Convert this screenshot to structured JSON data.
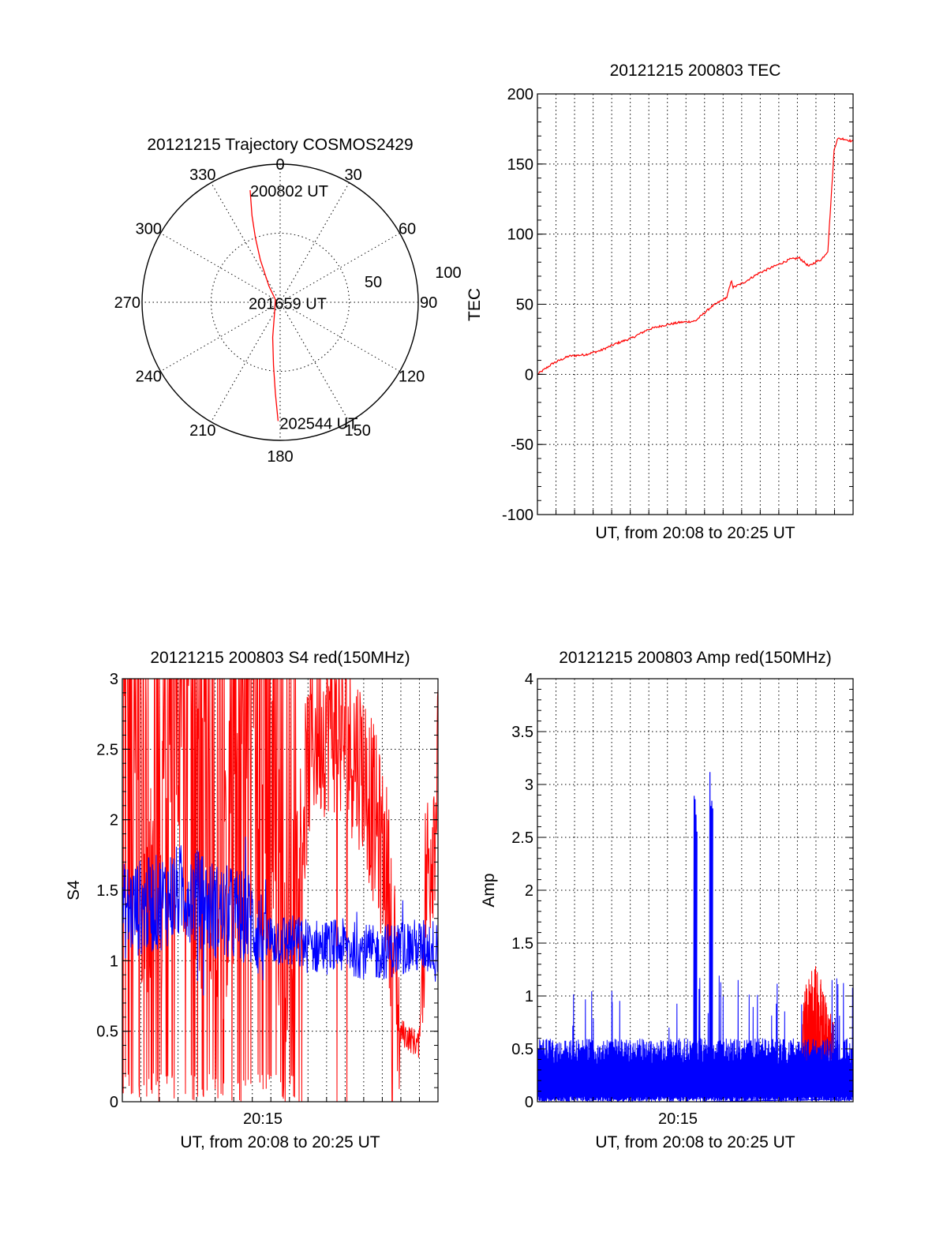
{
  "colors": {
    "red_series": "#ff0000",
    "blue_series": "#0000ff",
    "axes": "#000000"
  },
  "chart_data": [
    {
      "type": "polar",
      "title": "20121215 Trajectory COSMOS2429",
      "angle_labels": [
        "0",
        "30",
        "60",
        "90",
        "120",
        "150",
        "180",
        "210",
        "240",
        "270",
        "300",
        "330"
      ],
      "radial_labels": [
        "50",
        "100"
      ],
      "radial_max": 100,
      "grid": true,
      "series": [
        {
          "points": [
            [
              345,
              84
            ],
            [
              342,
              66
            ],
            [
              339,
              50
            ],
            [
              335,
              34
            ],
            [
              325,
              14
            ],
            [
              300,
              4
            ],
            [
              210,
              8
            ],
            [
              192,
              26
            ],
            [
              186,
              46
            ],
            [
              183,
              66
            ],
            [
              181,
              86
            ]
          ]
        }
      ],
      "annotations": [
        {
          "text": "200802 UT",
          "theta": 345,
          "r": 84
        },
        {
          "text": "201659 UT",
          "theta": 300,
          "r": 4
        },
        {
          "text": "202544 UT",
          "theta": 181,
          "r": 86
        }
      ]
    },
    {
      "type": "line",
      "title": "20121215 200803 TEC",
      "xlabel": "UT, from 20:08 to 20:25 UT",
      "ylabel": "TEC",
      "xlim": [
        0,
        1
      ],
      "ylim": [
        -100,
        200
      ],
      "yticks": [
        "-100",
        "-50",
        "0",
        "50",
        "100",
        "150",
        "200"
      ],
      "grid": true,
      "series": [
        {
          "x": [
            0,
            0.05,
            0.1,
            0.15,
            0.2,
            0.25,
            0.3,
            0.35,
            0.4,
            0.45,
            0.5,
            0.55,
            0.6,
            0.615,
            0.62,
            0.65,
            0.7,
            0.75,
            0.8,
            0.83,
            0.86,
            0.88,
            0.9,
            0.92,
            0.94,
            0.95,
            0.97,
            1.0
          ],
          "values": [
            0,
            8,
            13,
            14,
            17,
            22,
            26,
            32,
            35,
            37,
            38,
            48,
            55,
            67,
            62,
            65,
            72,
            77,
            82,
            83,
            77,
            80,
            82,
            88,
            160,
            168,
            168,
            166
          ]
        }
      ]
    },
    {
      "type": "line",
      "title": "20121215 200803 S4 red(150MHz)",
      "xlabel": "UT, from 20:08 to 20:25 UT",
      "ylabel": "S4",
      "xticks": [
        "20:15"
      ],
      "xtick_positions": [
        0.445
      ],
      "xlim": [
        0,
        1
      ],
      "ylim": [
        0,
        3
      ],
      "yticks": [
        "0",
        "0.5",
        "1",
        "1.5",
        "2",
        "2.5",
        "3"
      ],
      "grid": true,
      "series": [
        {
          "x": [
            0,
            0.1,
            0.2,
            0.3,
            0.4,
            0.48,
            0.52,
            0.6,
            0.66,
            0.7,
            0.76,
            0.84,
            0.88,
            0.94,
            0.96,
            1.0
          ],
          "values": [
            3,
            1.5,
            3,
            1.0,
            3,
            2.0,
            1.0,
            2.6,
            2.7,
            2.6,
            2.4,
            1.6,
            0.5,
            0.4,
            1.5,
            2.3
          ]
        },
        {
          "x": [
            0,
            0.1,
            0.2,
            0.3,
            0.4,
            0.45,
            0.5,
            0.6,
            0.7,
            0.8,
            0.9,
            1.0
          ],
          "values": [
            1.35,
            1.4,
            1.5,
            1.35,
            1.3,
            1.15,
            1.15,
            1.1,
            1.1,
            1.05,
            1.1,
            1.1
          ]
        }
      ]
    },
    {
      "type": "line",
      "title": "20121215 200803 Amp red(150MHz)",
      "xlabel": "UT, from 20:08 to 20:25 UT",
      "ylabel": "Amp",
      "xticks": [
        "20:15"
      ],
      "xtick_positions": [
        0.445
      ],
      "xlim": [
        0,
        1
      ],
      "ylim": [
        0,
        4
      ],
      "yticks": [
        "0",
        "0.5",
        "1",
        "1.5",
        "2",
        "2.5",
        "3",
        "3.5",
        "4"
      ],
      "grid": true,
      "series": [
        {
          "x": [
            0.84,
            0.86,
            0.88,
            0.9,
            0.92,
            0.94
          ],
          "values": [
            0.9,
            1.1,
            1.2,
            1.05,
            0.8,
            0.7
          ]
        },
        {
          "x": [
            0,
            0.1,
            0.2,
            0.3,
            0.4,
            0.48,
            0.5,
            0.54,
            0.55,
            0.6,
            0.7,
            0.8,
            0.9,
            1.0
          ],
          "values": [
            0.6,
            0.55,
            0.55,
            0.6,
            0.6,
            0.6,
            3.0,
            0.6,
            3.15,
            0.6,
            0.6,
            0.6,
            0.6,
            0.6
          ]
        }
      ]
    }
  ]
}
